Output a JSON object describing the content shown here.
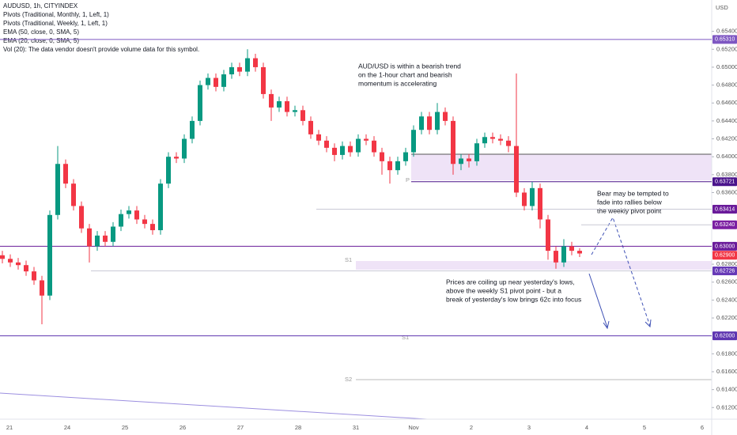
{
  "chart_data": {
    "type": "candlestick",
    "legend_lines": [
      "AUDUSD, 1h, CITYINDEX",
      "Pivots (Traditional, Monthly, 1, Left, 1)",
      "Pivots (Traditional, Weekly, 1, Left, 1)",
      "EMA (50, close, 0, SMA, 5)",
      "EMA (20, close, 0, SMA, 5)",
      "Vol (20): The data vendor doesn't provide volume data for this symbol."
    ],
    "axis_unit": "USD",
    "annotations": [
      [
        "AUD/USD is within a bearish trend",
        "on the 1-hour chart and bearish",
        "momentum is accelerating"
      ],
      [
        "Prices are coiling up near yesterday's lows,",
        "above the weekly S1 pivot point - but a",
        "break of yesterday's low brings 62c into focus"
      ],
      [
        "Bear may be tempted to",
        "fade into rallies below",
        "the weekly pivot point"
      ]
    ],
    "pivot_labels": [
      "P",
      "S1",
      "S1",
      "S2"
    ],
    "x_labels": [
      "21",
      "24",
      "25",
      "26",
      "27",
      "28",
      "31",
      "Nov",
      "2",
      "3",
      "4",
      "5",
      "6"
    ],
    "up_color": "#089981",
    "down_color": "#f23645",
    "ylim": [
      0.6107,
      0.6575
    ],
    "yticks": [
      {
        "value": 0.654,
        "label": "0.65400"
      },
      {
        "value": 0.652,
        "label": "0.65200"
      },
      {
        "value": 0.65,
        "label": "0.65000"
      },
      {
        "value": 0.648,
        "label": "0.64800"
      },
      {
        "value": 0.646,
        "label": "0.64600"
      },
      {
        "value": 0.644,
        "label": "0.64400"
      },
      {
        "value": 0.642,
        "label": "0.64200"
      },
      {
        "value": 0.64,
        "label": "0.64000"
      },
      {
        "value": 0.638,
        "label": "0.63800"
      },
      {
        "value": 0.636,
        "label": "0.63600"
      },
      {
        "value": 0.628,
        "label": "0.62800"
      },
      {
        "value": 0.626,
        "label": "0.62600"
      },
      {
        "value": 0.624,
        "label": "0.62400"
      },
      {
        "value": 0.622,
        "label": "0.62200"
      },
      {
        "value": 0.618,
        "label": "0.61800"
      },
      {
        "value": 0.616,
        "label": "0.61600"
      },
      {
        "value": 0.614,
        "label": "0.61400"
      },
      {
        "value": 0.612,
        "label": "0.61200"
      }
    ],
    "levels": [
      {
        "value": 0.6531,
        "label": "0.65310",
        "color": "#7e57c2"
      },
      {
        "value": 0.63721,
        "label": "0.63721",
        "color": "#4a148c"
      },
      {
        "value": 0.63414,
        "label": "0.63414",
        "color": "#6a1b9a"
      },
      {
        "value": 0.6324,
        "label": "0.63240",
        "color": "#7b1fa2"
      },
      {
        "value": 0.63,
        "label": "0.63000",
        "color": "#6a1b9a"
      },
      {
        "value": 0.629,
        "label": "0.62900",
        "color": "#f23645"
      },
      {
        "value": 0.62726,
        "label": "0.62726",
        "color": "#673ab7"
      },
      {
        "value": 0.62,
        "label": "0.62000",
        "color": "#5e35b1"
      }
    ],
    "ohlc": [
      [
        0.629,
        0.6295,
        0.6281,
        0.6286
      ],
      [
        0.6286,
        0.6291,
        0.6277,
        0.6282
      ],
      [
        0.6282,
        0.6287,
        0.6274,
        0.6279
      ],
      [
        0.6279,
        0.6284,
        0.6267,
        0.6272
      ],
      [
        0.6272,
        0.6277,
        0.6257,
        0.6262
      ],
      [
        0.6262,
        0.6267,
        0.6213,
        0.6245
      ],
      [
        0.6245,
        0.634,
        0.624,
        0.6335
      ],
      [
        0.6335,
        0.6412,
        0.633,
        0.6392
      ],
      [
        0.6392,
        0.6397,
        0.6365,
        0.637
      ],
      [
        0.637,
        0.6375,
        0.634,
        0.6345
      ],
      [
        0.6345,
        0.635,
        0.6315,
        0.632
      ],
      [
        0.632,
        0.6325,
        0.6282,
        0.63
      ],
      [
        0.63,
        0.6317,
        0.6295,
        0.6312
      ],
      [
        0.6312,
        0.6317,
        0.63,
        0.6305
      ],
      [
        0.6305,
        0.6327,
        0.63,
        0.6322
      ],
      [
        0.6322,
        0.6341,
        0.6317,
        0.6336
      ],
      [
        0.6336,
        0.6345,
        0.6331,
        0.634
      ],
      [
        0.634,
        0.6345,
        0.6325,
        0.633
      ],
      [
        0.633,
        0.6335,
        0.632,
        0.6325
      ],
      [
        0.6325,
        0.633,
        0.6313,
        0.6318
      ],
      [
        0.6318,
        0.6375,
        0.6313,
        0.637
      ],
      [
        0.637,
        0.6405,
        0.6365,
        0.64
      ],
      [
        0.64,
        0.6405,
        0.6393,
        0.6398
      ],
      [
        0.6398,
        0.6425,
        0.6393,
        0.642
      ],
      [
        0.642,
        0.6445,
        0.6415,
        0.644
      ],
      [
        0.644,
        0.6485,
        0.6435,
        0.648
      ],
      [
        0.648,
        0.6493,
        0.6475,
        0.6488
      ],
      [
        0.6488,
        0.6493,
        0.6473,
        0.6478
      ],
      [
        0.6478,
        0.6497,
        0.6473,
        0.6492
      ],
      [
        0.6492,
        0.6505,
        0.6487,
        0.65
      ],
      [
        0.65,
        0.6505,
        0.649,
        0.6495
      ],
      [
        0.6495,
        0.652,
        0.649,
        0.651
      ],
      [
        0.651,
        0.6515,
        0.6495,
        0.65
      ],
      [
        0.65,
        0.6505,
        0.6465,
        0.647
      ],
      [
        0.647,
        0.6475,
        0.644,
        0.6455
      ],
      [
        0.6455,
        0.6467,
        0.645,
        0.6462
      ],
      [
        0.6462,
        0.6467,
        0.6445,
        0.645
      ],
      [
        0.645,
        0.6457,
        0.6445,
        0.6452
      ],
      [
        0.6452,
        0.6457,
        0.6435,
        0.644
      ],
      [
        0.644,
        0.6445,
        0.642,
        0.6425
      ],
      [
        0.6425,
        0.643,
        0.6413,
        0.6418
      ],
      [
        0.6418,
        0.6423,
        0.6405,
        0.641
      ],
      [
        0.641,
        0.6415,
        0.6395,
        0.6402
      ],
      [
        0.6402,
        0.6417,
        0.6397,
        0.6412
      ],
      [
        0.6412,
        0.6417,
        0.64,
        0.6405
      ],
      [
        0.6405,
        0.6425,
        0.64,
        0.642
      ],
      [
        0.642,
        0.6425,
        0.6413,
        0.6418
      ],
      [
        0.6418,
        0.6423,
        0.64,
        0.6405
      ],
      [
        0.6405,
        0.641,
        0.638,
        0.6395
      ],
      [
        0.6395,
        0.64,
        0.637,
        0.6385
      ],
      [
        0.6385,
        0.64,
        0.638,
        0.6395
      ],
      [
        0.6395,
        0.641,
        0.639,
        0.6405
      ],
      [
        0.6405,
        0.6435,
        0.64,
        0.643
      ],
      [
        0.643,
        0.645,
        0.6425,
        0.6445
      ],
      [
        0.6445,
        0.645,
        0.6425,
        0.643
      ],
      [
        0.643,
        0.646,
        0.6425,
        0.645
      ],
      [
        0.645,
        0.6455,
        0.6435,
        0.644
      ],
      [
        0.644,
        0.6445,
        0.638,
        0.6392
      ],
      [
        0.6392,
        0.6403,
        0.6385,
        0.6398
      ],
      [
        0.6398,
        0.6403,
        0.6388,
        0.6395
      ],
      [
        0.6395,
        0.642,
        0.639,
        0.6415
      ],
      [
        0.6415,
        0.6427,
        0.641,
        0.6422
      ],
      [
        0.6422,
        0.6427,
        0.6415,
        0.642
      ],
      [
        0.642,
        0.6425,
        0.6413,
        0.6418
      ],
      [
        0.6418,
        0.6423,
        0.6405,
        0.6412
      ],
      [
        0.6412,
        0.6493,
        0.6355,
        0.636
      ],
      [
        0.636,
        0.6365,
        0.634,
        0.6345
      ],
      [
        0.6345,
        0.6372,
        0.634,
        0.6365
      ],
      [
        0.6365,
        0.637,
        0.632,
        0.633
      ],
      [
        0.633,
        0.6335,
        0.6285,
        0.6295
      ],
      [
        0.6295,
        0.63,
        0.6275,
        0.6282
      ],
      [
        0.6282,
        0.6308,
        0.6277,
        0.63
      ],
      [
        0.63,
        0.6305,
        0.629,
        0.6295
      ],
      [
        0.6295,
        0.6298,
        0.6288,
        0.6292
      ]
    ]
  }
}
